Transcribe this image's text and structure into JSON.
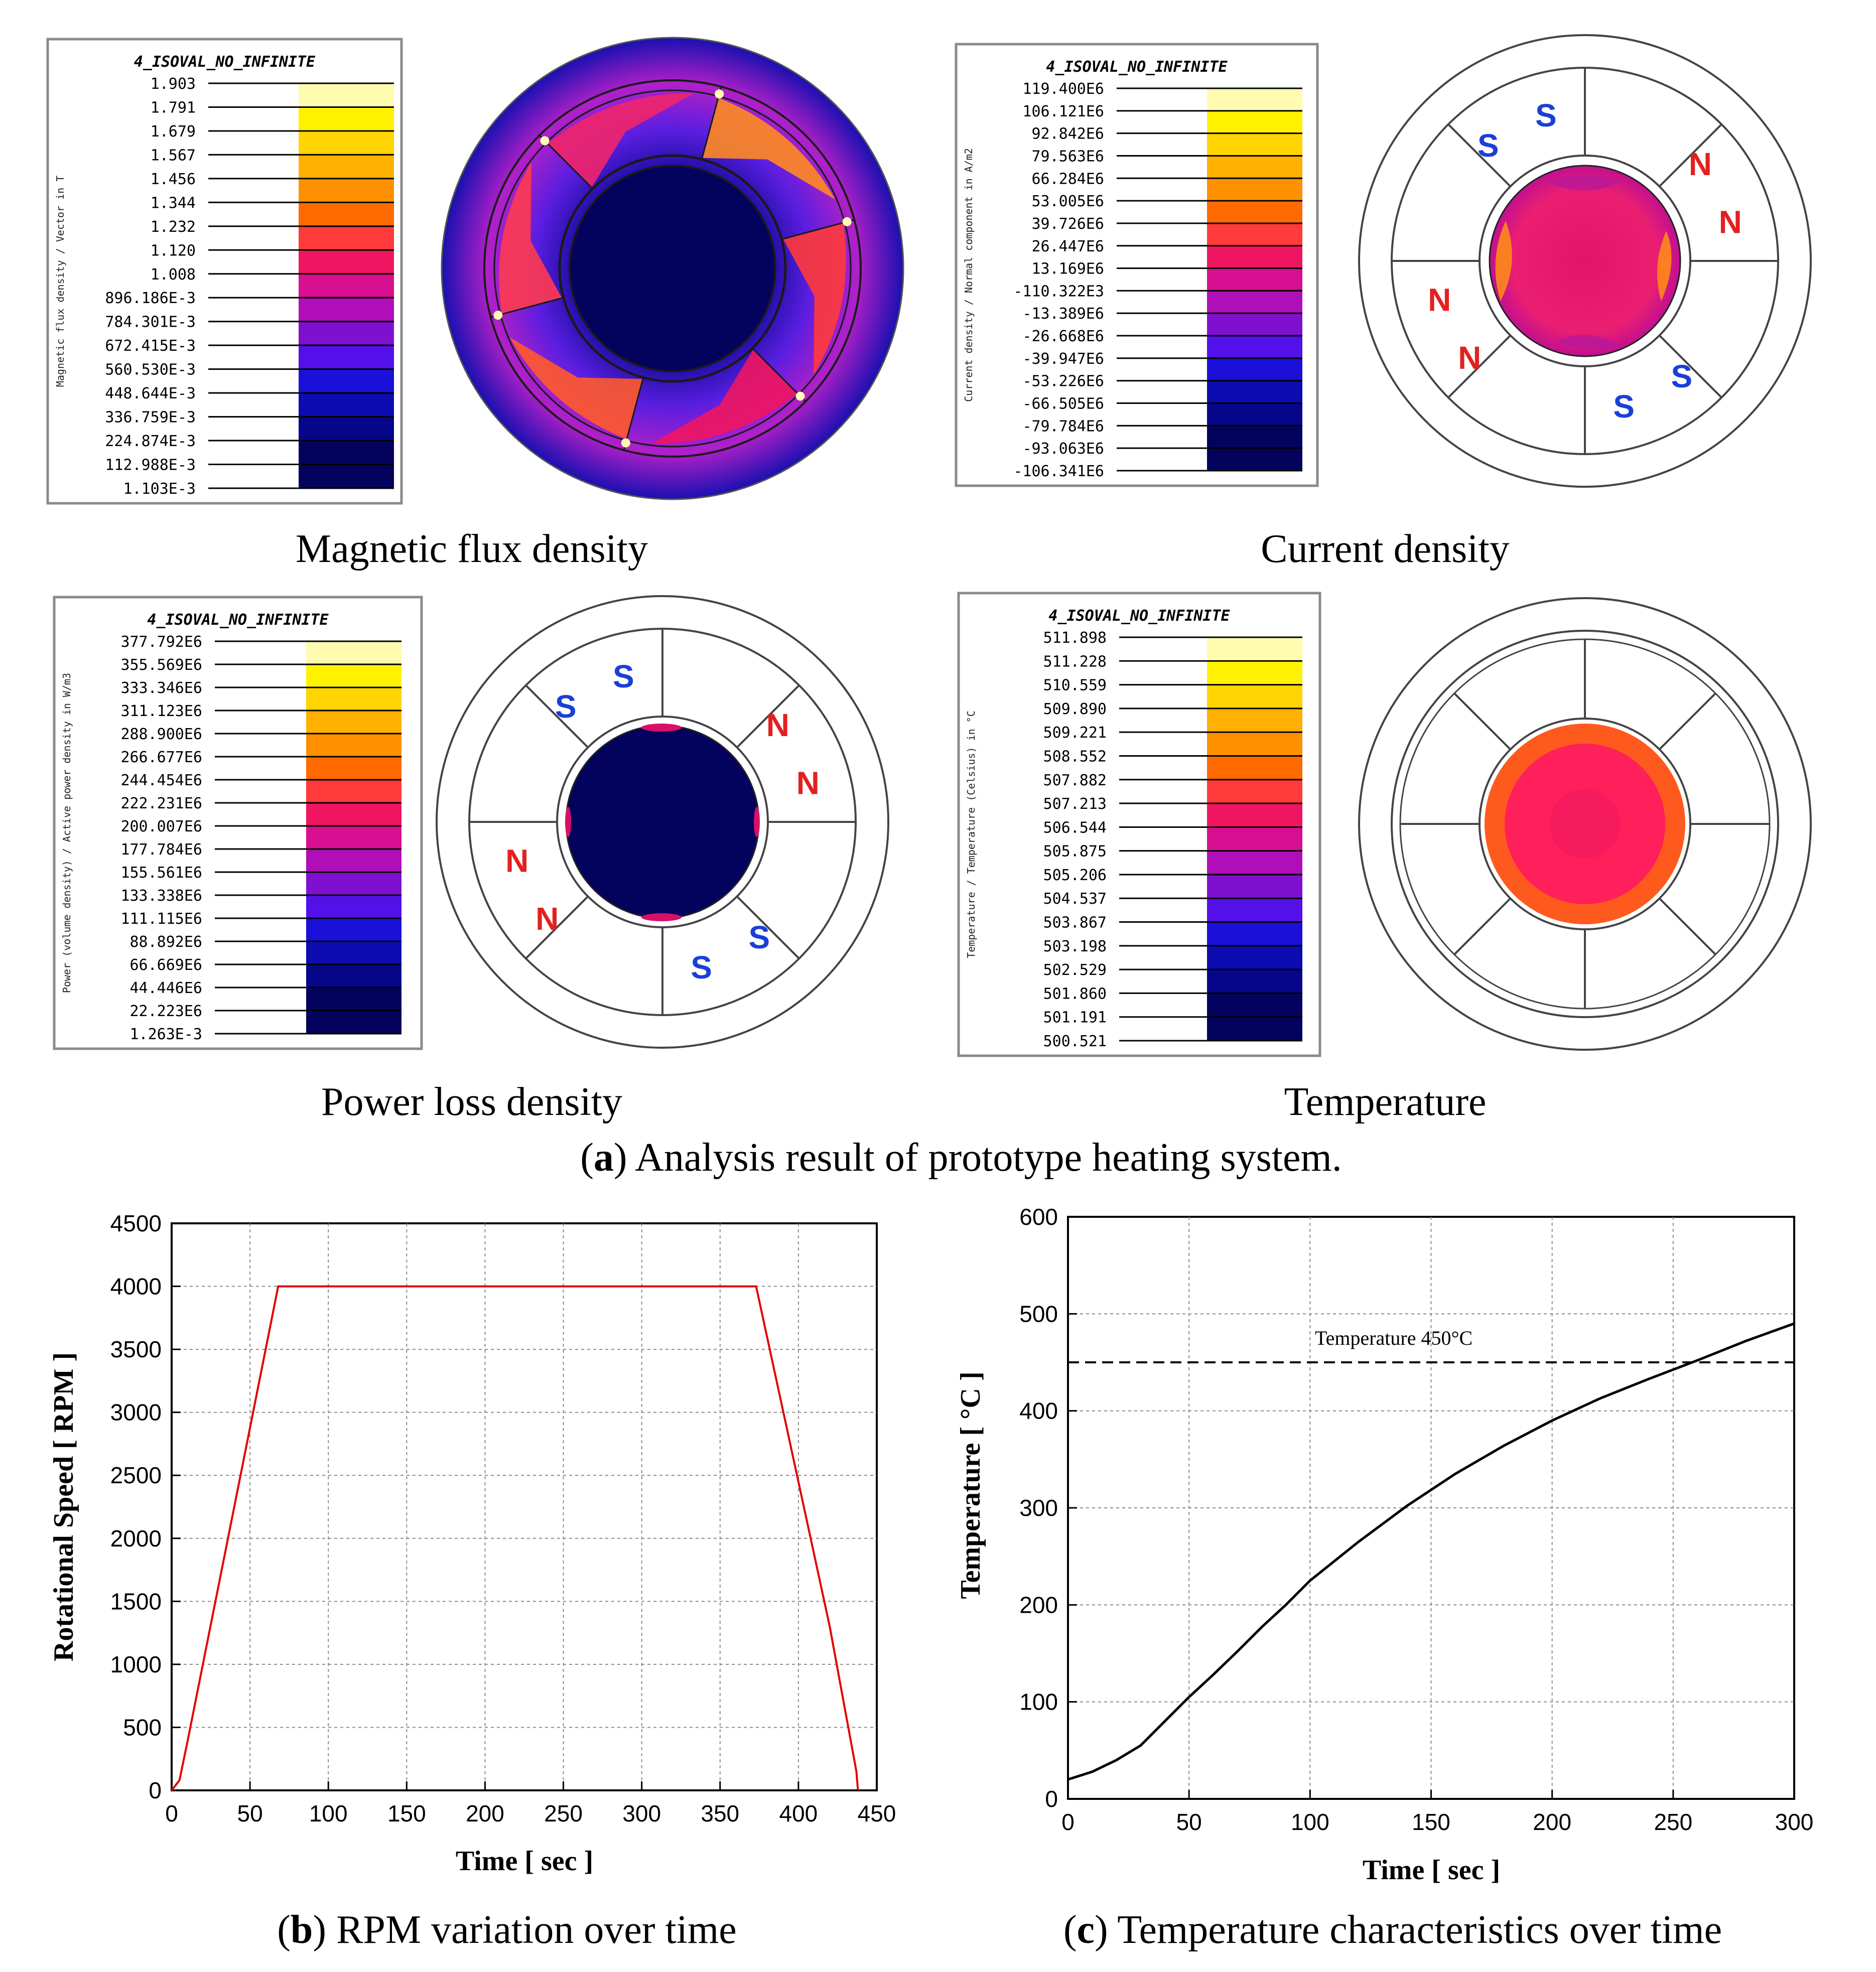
{
  "colors": {
    "background": "#ffffff",
    "rpm_line": "#e00000",
    "temp_line": "#000000",
    "grid": "#8c8c8c",
    "north_label": "#e32020",
    "south_label": "#1a3fd8"
  },
  "legend_palette": [
    "#fffcb0",
    "#fff200",
    "#ffd400",
    "#ffb000",
    "#ff9000",
    "#ff6a00",
    "#ff3a3a",
    "#f01560",
    "#d80f90",
    "#b00eb8",
    "#8010d0",
    "#5410e8",
    "#1a10d8",
    "#0c0cb0",
    "#06068a",
    "#03035e"
  ],
  "panel_a": {
    "caption_letter": "a",
    "caption_text": ") Analysis result of prototype heating system.",
    "plots": [
      {
        "caption": "Magnetic flux density",
        "legend_title": "4_ISOVAL_NO_INFINITE",
        "legend_axis": "Magnetic flux density / Vector in T",
        "levels": [
          "1.903",
          "1.791",
          "1.679",
          "1.567",
          "1.456",
          "1.344",
          "1.232",
          "1.120",
          "1.008",
          "896.186E-3",
          "784.301E-3",
          "672.415E-3",
          "560.530E-3",
          "448.644E-3",
          "336.759E-3",
          "224.874E-3",
          "112.988E-3",
          "1.103E-3"
        ]
      },
      {
        "caption": "Current density",
        "legend_title": "4_ISOVAL_NO_INFINITE",
        "legend_axis": "Current density / Normal component in A/m2",
        "levels": [
          "119.400E6",
          "106.121E6",
          "92.842E6",
          "79.563E6",
          "66.284E6",
          "53.005E6",
          "39.726E6",
          "26.447E6",
          "13.169E6",
          "-110.322E3",
          "-13.389E6",
          "-26.668E6",
          "-39.947E6",
          "-53.226E6",
          "-66.505E6",
          "-79.784E6",
          "-93.063E6",
          "-106.341E6"
        ],
        "poles": [
          "S",
          "N",
          "N",
          "S",
          "S",
          "N",
          "N",
          "S"
        ]
      },
      {
        "caption": "Power loss density",
        "legend_title": "4_ISOVAL_NO_INFINITE",
        "legend_axis": "Power (volume density) / Active power density in W/m3",
        "levels": [
          "377.792E6",
          "355.569E6",
          "333.346E6",
          "311.123E6",
          "288.900E6",
          "266.677E6",
          "244.454E6",
          "222.231E6",
          "200.007E6",
          "177.784E6",
          "155.561E6",
          "133.338E6",
          "111.115E6",
          "88.892E6",
          "66.669E6",
          "44.446E6",
          "22.223E6",
          "1.263E-3"
        ],
        "poles": [
          "S",
          "N",
          "N",
          "S",
          "S",
          "N",
          "N",
          "S"
        ]
      },
      {
        "caption": "Temperature",
        "legend_title": "4_ISOVAL_NO_INFINITE",
        "legend_axis": "Temperature / Temperature (Celsius) in °C",
        "levels": [
          "511.898",
          "511.228",
          "510.559",
          "509.890",
          "509.221",
          "508.552",
          "507.882",
          "507.213",
          "506.544",
          "505.875",
          "505.206",
          "504.537",
          "503.867",
          "503.198",
          "502.529",
          "501.860",
          "501.191",
          "500.521"
        ]
      }
    ]
  },
  "chart_data": [
    {
      "type": "line",
      "caption_letter": "b",
      "caption_text": ") RPM variation over time",
      "xlabel": "Time [ sec ]",
      "ylabel": "Rotational Speed [ RPM ]",
      "xlim": [
        0,
        450
      ],
      "ylim": [
        0,
        4500
      ],
      "xticks": [
        0,
        50,
        100,
        150,
        200,
        250,
        300,
        350,
        400,
        450
      ],
      "yticks": [
        0,
        500,
        1000,
        1500,
        2000,
        2500,
        3000,
        3500,
        4000,
        4500
      ],
      "grid": true,
      "series": [
        {
          "x": [
            0,
            5,
            10,
            68,
            100,
            200,
            300,
            373,
            420,
            437,
            438
          ],
          "y": [
            0,
            80,
            380,
            4000,
            4000,
            4000,
            4000,
            4000,
            1300,
            150,
            0
          ]
        }
      ]
    },
    {
      "type": "line",
      "caption_letter": "c",
      "caption_text": ") Temperature characteristics over time",
      "xlabel": "Time [ sec ]",
      "ylabel": "Temperature [ °C ]",
      "xlim": [
        0,
        300
      ],
      "ylim": [
        0,
        600
      ],
      "xticks": [
        0,
        50,
        100,
        150,
        200,
        250,
        300
      ],
      "yticks": [
        0,
        100,
        200,
        300,
        400,
        500,
        600
      ],
      "grid": true,
      "annotation": "Temperature 450°C",
      "reference_line": 450,
      "series": [
        {
          "x": [
            0,
            10,
            20,
            30,
            40,
            50,
            60,
            70,
            80,
            90,
            100,
            120,
            140,
            160,
            180,
            200,
            220,
            240,
            260,
            280,
            300
          ],
          "y": [
            20,
            28,
            40,
            55,
            80,
            105,
            128,
            152,
            177,
            200,
            225,
            265,
            302,
            335,
            364,
            390,
            413,
            433,
            452,
            472,
            490
          ]
        }
      ]
    }
  ]
}
